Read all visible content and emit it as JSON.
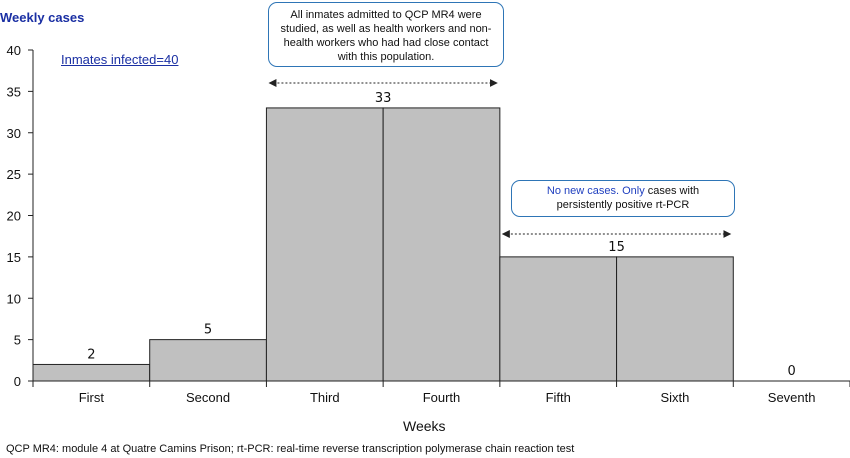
{
  "chart_data": {
    "type": "bar",
    "categories": [
      "First",
      "Second",
      "Third",
      "Fourth",
      "Fifth",
      "Sixth",
      "Seventh"
    ],
    "values": [
      2,
      5,
      33,
      33,
      15,
      15,
      0
    ],
    "data_labels": [
      {
        "text": "2",
        "category_index": 0
      },
      {
        "text": "5",
        "category_index": 1
      },
      {
        "text": "33",
        "category_span": [
          2,
          3
        ]
      },
      {
        "text": "15",
        "category_span": [
          4,
          5
        ]
      },
      {
        "text": "0",
        "category_index": 6
      }
    ],
    "ylabel": "Weekly cases",
    "xlabel": "Weeks",
    "ylim": [
      0,
      40
    ],
    "yticks": [
      0,
      5,
      10,
      15,
      20,
      25,
      30,
      35,
      40
    ],
    "bar_color": "#c0c0c0",
    "bar_edge_color": "#222222",
    "grid": false,
    "annotations": [
      {
        "id": "infected",
        "text": "Inmates infected=40",
        "color": "#1a2fa3"
      },
      {
        "id": "note1",
        "text": "All inmates admitted to QCP MR4 were studied, as well as health workers and non-health workers who had had close contact with this population.",
        "span": [
          2,
          3
        ]
      },
      {
        "id": "note2",
        "text_blue": "No new cases. Only",
        "text": "cases with persistently positive rt-PCR",
        "span": [
          4,
          5
        ]
      }
    ],
    "footnote": "QCP MR4: module 4 at Quatre  Camins Prison; rt-PCR: real-time reverse transcription polymerase chain reaction test"
  }
}
